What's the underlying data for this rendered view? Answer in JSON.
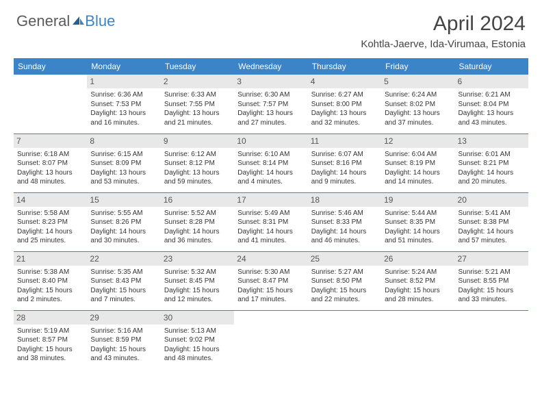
{
  "logo": {
    "part1": "General",
    "part2": "Blue"
  },
  "title": "April 2024",
  "location": "Kohtla-Jaerve, Ida-Virumaa, Estonia",
  "colors": {
    "header_bg": "#3a84c7",
    "header_text": "#ffffff",
    "daynum_bg": "#e8e8e8",
    "border": "#3a84c7",
    "text": "#333333",
    "logo_gray": "#5a5a5a",
    "logo_blue": "#3a84c7"
  },
  "typography": {
    "title_fontsize": 30,
    "location_fontsize": 15,
    "dayheader_fontsize": 12,
    "daynum_fontsize": 12,
    "cell_fontsize": 10
  },
  "day_headers": [
    "Sunday",
    "Monday",
    "Tuesday",
    "Wednesday",
    "Thursday",
    "Friday",
    "Saturday"
  ],
  "weeks": [
    [
      {
        "empty": true
      },
      {
        "num": "1",
        "sunrise": "Sunrise: 6:36 AM",
        "sunset": "Sunset: 7:53 PM",
        "day1": "Daylight: 13 hours",
        "day2": "and 16 minutes."
      },
      {
        "num": "2",
        "sunrise": "Sunrise: 6:33 AM",
        "sunset": "Sunset: 7:55 PM",
        "day1": "Daylight: 13 hours",
        "day2": "and 21 minutes."
      },
      {
        "num": "3",
        "sunrise": "Sunrise: 6:30 AM",
        "sunset": "Sunset: 7:57 PM",
        "day1": "Daylight: 13 hours",
        "day2": "and 27 minutes."
      },
      {
        "num": "4",
        "sunrise": "Sunrise: 6:27 AM",
        "sunset": "Sunset: 8:00 PM",
        "day1": "Daylight: 13 hours",
        "day2": "and 32 minutes."
      },
      {
        "num": "5",
        "sunrise": "Sunrise: 6:24 AM",
        "sunset": "Sunset: 8:02 PM",
        "day1": "Daylight: 13 hours",
        "day2": "and 37 minutes."
      },
      {
        "num": "6",
        "sunrise": "Sunrise: 6:21 AM",
        "sunset": "Sunset: 8:04 PM",
        "day1": "Daylight: 13 hours",
        "day2": "and 43 minutes."
      }
    ],
    [
      {
        "num": "7",
        "sunrise": "Sunrise: 6:18 AM",
        "sunset": "Sunset: 8:07 PM",
        "day1": "Daylight: 13 hours",
        "day2": "and 48 minutes."
      },
      {
        "num": "8",
        "sunrise": "Sunrise: 6:15 AM",
        "sunset": "Sunset: 8:09 PM",
        "day1": "Daylight: 13 hours",
        "day2": "and 53 minutes."
      },
      {
        "num": "9",
        "sunrise": "Sunrise: 6:12 AM",
        "sunset": "Sunset: 8:12 PM",
        "day1": "Daylight: 13 hours",
        "day2": "and 59 minutes."
      },
      {
        "num": "10",
        "sunrise": "Sunrise: 6:10 AM",
        "sunset": "Sunset: 8:14 PM",
        "day1": "Daylight: 14 hours",
        "day2": "and 4 minutes."
      },
      {
        "num": "11",
        "sunrise": "Sunrise: 6:07 AM",
        "sunset": "Sunset: 8:16 PM",
        "day1": "Daylight: 14 hours",
        "day2": "and 9 minutes."
      },
      {
        "num": "12",
        "sunrise": "Sunrise: 6:04 AM",
        "sunset": "Sunset: 8:19 PM",
        "day1": "Daylight: 14 hours",
        "day2": "and 14 minutes."
      },
      {
        "num": "13",
        "sunrise": "Sunrise: 6:01 AM",
        "sunset": "Sunset: 8:21 PM",
        "day1": "Daylight: 14 hours",
        "day2": "and 20 minutes."
      }
    ],
    [
      {
        "num": "14",
        "sunrise": "Sunrise: 5:58 AM",
        "sunset": "Sunset: 8:23 PM",
        "day1": "Daylight: 14 hours",
        "day2": "and 25 minutes."
      },
      {
        "num": "15",
        "sunrise": "Sunrise: 5:55 AM",
        "sunset": "Sunset: 8:26 PM",
        "day1": "Daylight: 14 hours",
        "day2": "and 30 minutes."
      },
      {
        "num": "16",
        "sunrise": "Sunrise: 5:52 AM",
        "sunset": "Sunset: 8:28 PM",
        "day1": "Daylight: 14 hours",
        "day2": "and 36 minutes."
      },
      {
        "num": "17",
        "sunrise": "Sunrise: 5:49 AM",
        "sunset": "Sunset: 8:31 PM",
        "day1": "Daylight: 14 hours",
        "day2": "and 41 minutes."
      },
      {
        "num": "18",
        "sunrise": "Sunrise: 5:46 AM",
        "sunset": "Sunset: 8:33 PM",
        "day1": "Daylight: 14 hours",
        "day2": "and 46 minutes."
      },
      {
        "num": "19",
        "sunrise": "Sunrise: 5:44 AM",
        "sunset": "Sunset: 8:35 PM",
        "day1": "Daylight: 14 hours",
        "day2": "and 51 minutes."
      },
      {
        "num": "20",
        "sunrise": "Sunrise: 5:41 AM",
        "sunset": "Sunset: 8:38 PM",
        "day1": "Daylight: 14 hours",
        "day2": "and 57 minutes."
      }
    ],
    [
      {
        "num": "21",
        "sunrise": "Sunrise: 5:38 AM",
        "sunset": "Sunset: 8:40 PM",
        "day1": "Daylight: 15 hours",
        "day2": "and 2 minutes."
      },
      {
        "num": "22",
        "sunrise": "Sunrise: 5:35 AM",
        "sunset": "Sunset: 8:43 PM",
        "day1": "Daylight: 15 hours",
        "day2": "and 7 minutes."
      },
      {
        "num": "23",
        "sunrise": "Sunrise: 5:32 AM",
        "sunset": "Sunset: 8:45 PM",
        "day1": "Daylight: 15 hours",
        "day2": "and 12 minutes."
      },
      {
        "num": "24",
        "sunrise": "Sunrise: 5:30 AM",
        "sunset": "Sunset: 8:47 PM",
        "day1": "Daylight: 15 hours",
        "day2": "and 17 minutes."
      },
      {
        "num": "25",
        "sunrise": "Sunrise: 5:27 AM",
        "sunset": "Sunset: 8:50 PM",
        "day1": "Daylight: 15 hours",
        "day2": "and 22 minutes."
      },
      {
        "num": "26",
        "sunrise": "Sunrise: 5:24 AM",
        "sunset": "Sunset: 8:52 PM",
        "day1": "Daylight: 15 hours",
        "day2": "and 28 minutes."
      },
      {
        "num": "27",
        "sunrise": "Sunrise: 5:21 AM",
        "sunset": "Sunset: 8:55 PM",
        "day1": "Daylight: 15 hours",
        "day2": "and 33 minutes."
      }
    ],
    [
      {
        "num": "28",
        "sunrise": "Sunrise: 5:19 AM",
        "sunset": "Sunset: 8:57 PM",
        "day1": "Daylight: 15 hours",
        "day2": "and 38 minutes."
      },
      {
        "num": "29",
        "sunrise": "Sunrise: 5:16 AM",
        "sunset": "Sunset: 8:59 PM",
        "day1": "Daylight: 15 hours",
        "day2": "and 43 minutes."
      },
      {
        "num": "30",
        "sunrise": "Sunrise: 5:13 AM",
        "sunset": "Sunset: 9:02 PM",
        "day1": "Daylight: 15 hours",
        "day2": "and 48 minutes."
      },
      {
        "empty": true
      },
      {
        "empty": true
      },
      {
        "empty": true
      },
      {
        "empty": true
      }
    ]
  ]
}
